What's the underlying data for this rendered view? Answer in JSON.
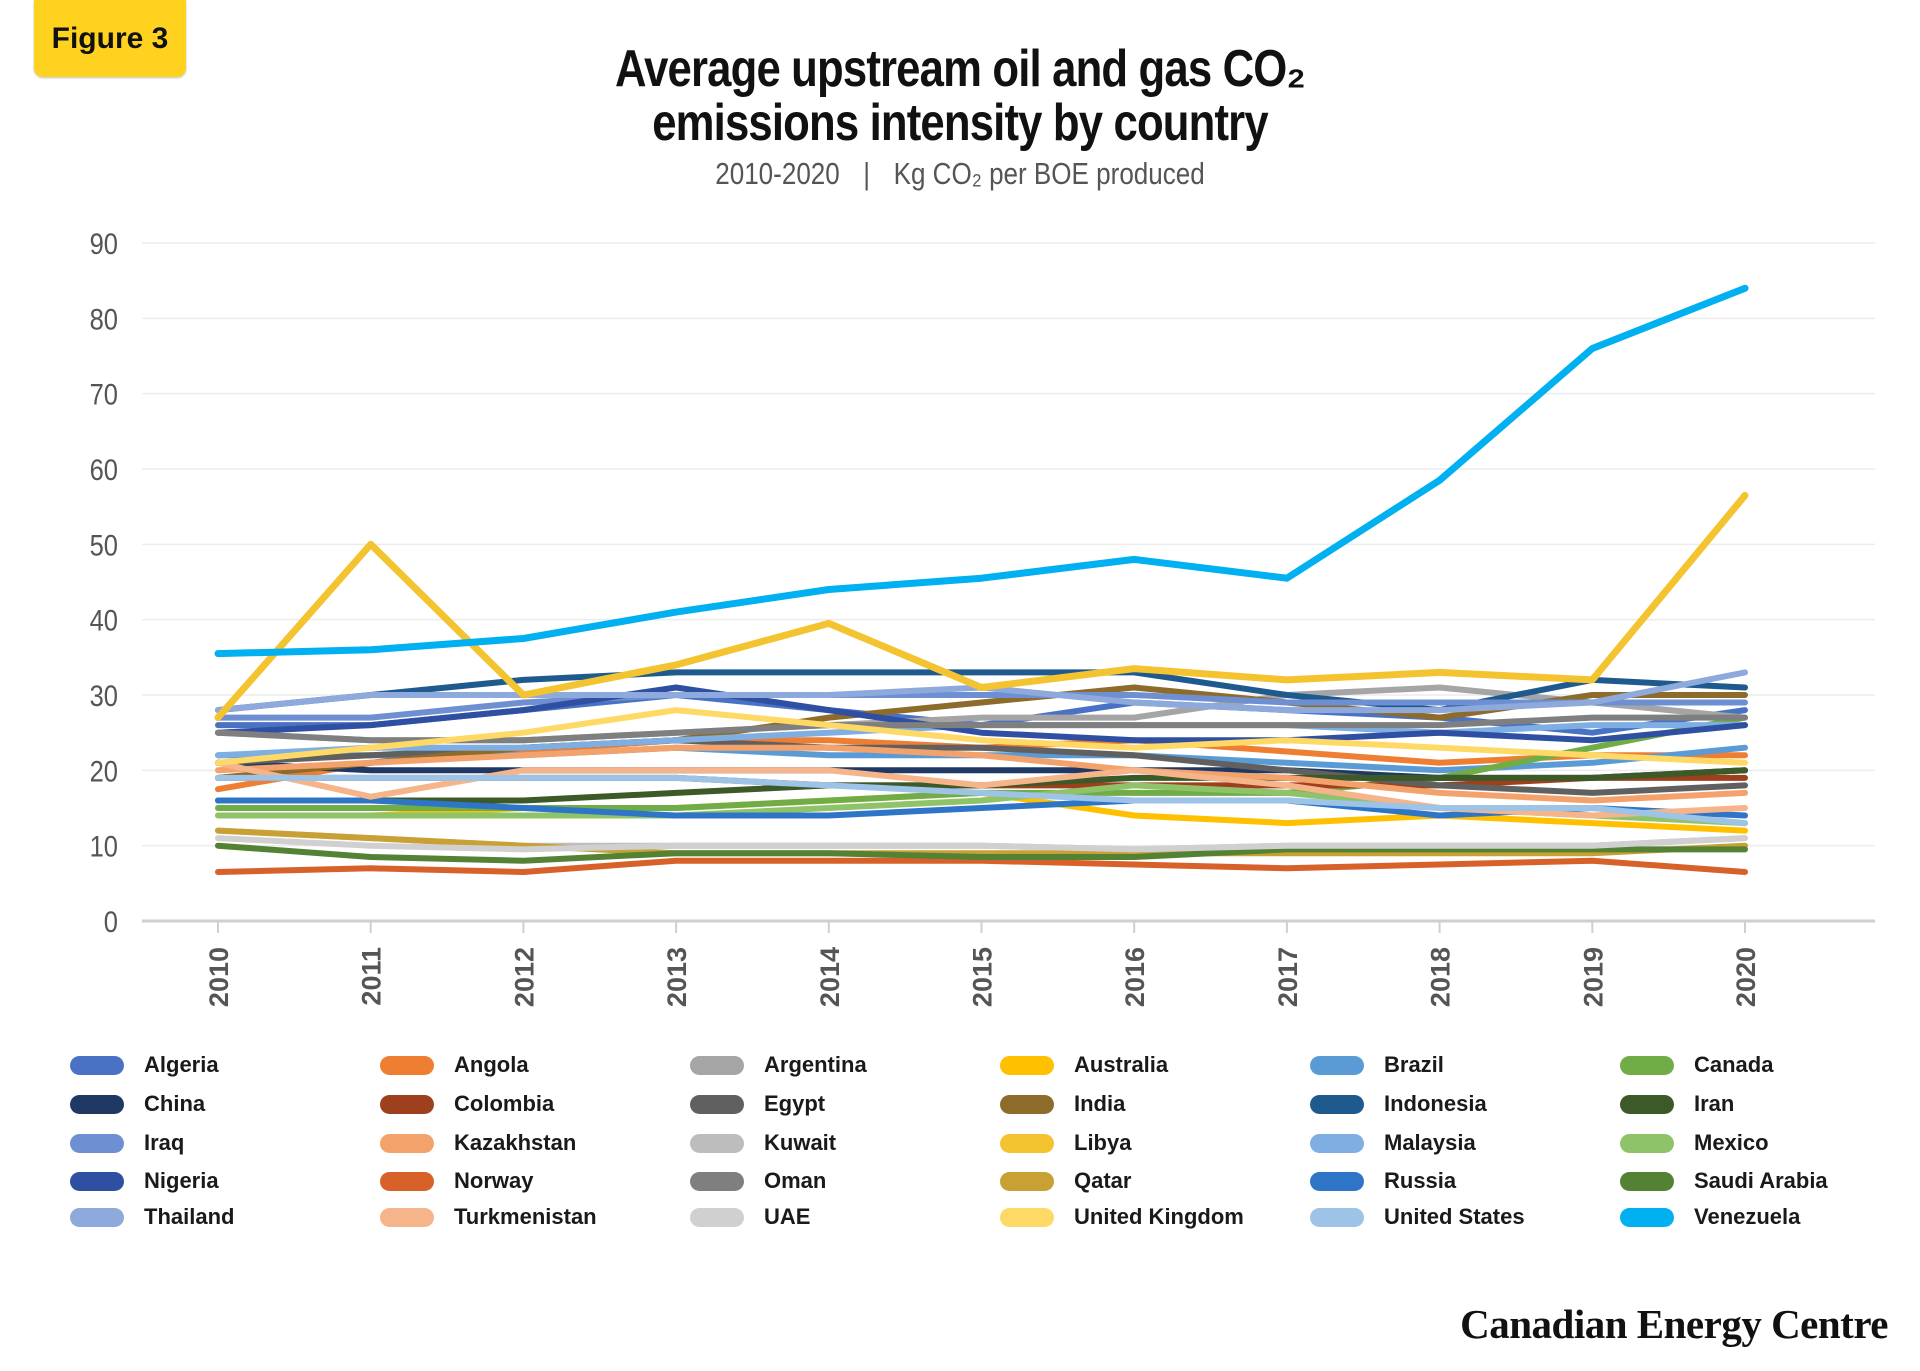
{
  "badge": "Figure 3",
  "title_line1": "Average upstream oil and gas CO₂",
  "title_line2": "emissions intensity by country",
  "subtitle_years": "2010-2020",
  "subtitle_unit": "Kg CO₂ per BOE produced",
  "brand": "Canadian Energy Centre",
  "chart_data": {
    "type": "line",
    "title": "Average upstream oil and gas CO₂ emissions intensity by country",
    "subtitle": "2010-2020 | Kg CO₂ per BOE produced",
    "xlabel": "",
    "ylabel": "",
    "x": [
      "2010",
      "2011",
      "2012",
      "2013",
      "2014",
      "2015",
      "2016",
      "2017",
      "2018",
      "2019",
      "2020"
    ],
    "ylim": [
      0,
      90
    ],
    "yticks": [
      0,
      10,
      20,
      30,
      40,
      50,
      60,
      70,
      80,
      90
    ],
    "grid": true,
    "legend_position": "bottom",
    "series": [
      {
        "name": "Algeria",
        "color": "#4a72c4",
        "values": [
          26,
          26,
          28,
          30,
          28,
          26,
          29,
          28,
          27,
          25,
          28
        ]
      },
      {
        "name": "Angola",
        "color": "#ee7e32",
        "values": [
          17.5,
          21,
          22.5,
          24,
          24,
          23,
          24,
          22.5,
          21,
          22,
          22
        ]
      },
      {
        "name": "Argentina",
        "color": "#a5a5a5",
        "values": [
          25,
          24,
          24,
          25,
          26,
          27,
          27,
          30,
          31,
          29,
          27
        ]
      },
      {
        "name": "Australia",
        "color": "#ffc000",
        "values": [
          14,
          14,
          15,
          15,
          16,
          17,
          14,
          13,
          14,
          13,
          12
        ]
      },
      {
        "name": "Brazil",
        "color": "#5b9bd5",
        "values": [
          22,
          22,
          22,
          23,
          22,
          22,
          22,
          21,
          20,
          21,
          23
        ]
      },
      {
        "name": "Canada",
        "color": "#70ad47",
        "values": [
          15,
          15,
          15,
          15,
          16,
          17,
          17,
          17,
          19,
          23,
          27
        ]
      },
      {
        "name": "China",
        "color": "#1f3864",
        "values": [
          21,
          20,
          20,
          20,
          20,
          20,
          20,
          20,
          19,
          19,
          20
        ]
      },
      {
        "name": "Colombia",
        "color": "#9e3f1e",
        "values": [
          19,
          19,
          19,
          19,
          18,
          18,
          18,
          18,
          18,
          19,
          19
        ]
      },
      {
        "name": "Egypt",
        "color": "#606060",
        "values": [
          21,
          22,
          23,
          24,
          23,
          23,
          22,
          20,
          18,
          17,
          18
        ]
      },
      {
        "name": "India",
        "color": "#8d6b2a",
        "values": [
          19,
          21,
          23,
          24,
          27,
          29,
          31,
          29,
          27,
          30,
          30
        ]
      },
      {
        "name": "Indonesia",
        "color": "#1f5a8f",
        "values": [
          28,
          30,
          32,
          33,
          33,
          33,
          33,
          30,
          28,
          32,
          31
        ]
      },
      {
        "name": "Iran",
        "color": "#3c5a28",
        "values": [
          16,
          16,
          16,
          17,
          18,
          18,
          19,
          19,
          19,
          19,
          20
        ]
      },
      {
        "name": "Iraq",
        "color": "#6e8fd2",
        "values": [
          27,
          27,
          29,
          30,
          30,
          30,
          30,
          29,
          29,
          29,
          29
        ]
      },
      {
        "name": "Kazakhstan",
        "color": "#f4a26c",
        "values": [
          20,
          21,
          22,
          23,
          23,
          22,
          20,
          19,
          17,
          16,
          17
        ]
      },
      {
        "name": "Kuwait",
        "color": "#bdbdbd",
        "values": [
          12,
          11,
          10,
          10,
          10,
          10,
          9.5,
          10,
          10,
          10,
          11
        ]
      },
      {
        "name": "Libya",
        "color": "#f4c430",
        "values": [
          27,
          50,
          30,
          34,
          39.5,
          31,
          33.5,
          32,
          33,
          32,
          56.5
        ]
      },
      {
        "name": "Malaysia",
        "color": "#7eaee2",
        "values": [
          22,
          23,
          23,
          24,
          25,
          26,
          26,
          26,
          25,
          26,
          26
        ]
      },
      {
        "name": "Mexico",
        "color": "#8fc36a",
        "values": [
          14,
          14,
          14,
          14,
          15,
          16,
          18,
          17,
          15,
          14,
          13
        ]
      },
      {
        "name": "Nigeria",
        "color": "#2f4fa2",
        "values": [
          25,
          26,
          28,
          31,
          28,
          25,
          24,
          24,
          25,
          24,
          26
        ]
      },
      {
        "name": "Norway",
        "color": "#d8612a",
        "values": [
          6.5,
          7,
          6.5,
          8,
          8,
          8,
          7.5,
          7,
          7.5,
          8,
          6.5
        ]
      },
      {
        "name": "Oman",
        "color": "#7f7f7f",
        "values": [
          25,
          24,
          24,
          25,
          26,
          26,
          26,
          26,
          26,
          27,
          27
        ]
      },
      {
        "name": "Qatar",
        "color": "#c8a033",
        "values": [
          12,
          11,
          10,
          9,
          9,
          9,
          9,
          9,
          9,
          9,
          10
        ]
      },
      {
        "name": "Russia",
        "color": "#2e75c8",
        "values": [
          16,
          16,
          15,
          14,
          14,
          15,
          16,
          16,
          14,
          15,
          14
        ]
      },
      {
        "name": "Saudi Arabia",
        "color": "#548235",
        "values": [
          10,
          8.5,
          8,
          9,
          9,
          8.5,
          8.5,
          9.5,
          9.5,
          9.5,
          9.5
        ]
      },
      {
        "name": "Thailand",
        "color": "#8ea9db",
        "values": [
          28,
          30,
          30,
          30,
          30,
          31,
          29,
          28,
          28,
          29,
          33
        ]
      },
      {
        "name": "Turkmenistan",
        "color": "#f5b48a",
        "values": [
          21,
          16.5,
          20,
          20,
          20,
          18,
          20,
          18,
          15,
          14,
          15
        ]
      },
      {
        "name": "UAE",
        "color": "#d0d0d0",
        "values": [
          11,
          10,
          9.5,
          10,
          10,
          10,
          9.5,
          10,
          10,
          10,
          11
        ]
      },
      {
        "name": "United Kingdom",
        "color": "#ffd966",
        "values": [
          21,
          23,
          25,
          28,
          26,
          24,
          23,
          24,
          23,
          22,
          21
        ]
      },
      {
        "name": "United States",
        "color": "#9dc3e6",
        "values": [
          19,
          19,
          19,
          19,
          18,
          17,
          16,
          16,
          15,
          15,
          13
        ]
      },
      {
        "name": "Venezuela",
        "color": "#00b0f0",
        "values": [
          35.5,
          36,
          37.5,
          41,
          44,
          45.5,
          48,
          45.5,
          58.5,
          76,
          84
        ]
      }
    ]
  }
}
